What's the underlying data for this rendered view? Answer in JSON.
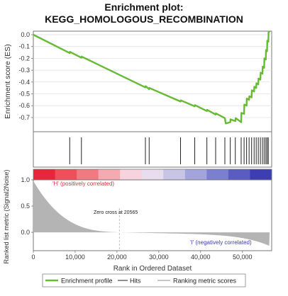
{
  "chart_data": {
    "type": "line",
    "title": "Enrichment plot:",
    "subtitle": "KEGG_HOMOLOGOUS_RECOMBINATION",
    "xlabel": "Rank in Ordered Dataset",
    "xlim": [
      0,
      57000
    ],
    "x_ticks": [
      0,
      10000,
      20000,
      30000,
      40000,
      50000
    ],
    "x_tick_labels": [
      "0",
      "10,000",
      "20,000",
      "30,000",
      "40,000",
      "50,000"
    ],
    "es_panel": {
      "ylabel": "Enrichment score (ES)",
      "ylim": [
        -0.82,
        0.03
      ],
      "y_ticks": [
        0.0,
        -0.1,
        -0.2,
        -0.3,
        -0.4,
        -0.5,
        -0.6,
        -0.7
      ],
      "y_tick_labels": [
        "0.0",
        "-0.1",
        "-0.2",
        "-0.3",
        "-0.4",
        "-0.5",
        "-0.6",
        "-0.7"
      ],
      "color": "#66bb33",
      "grid": true,
      "series": [
        {
          "name": "Enrichment profile",
          "x": [
            0,
            8700,
            8750,
            11500,
            11550,
            26800,
            26850,
            27700,
            27750,
            35200,
            35250,
            38600,
            38650,
            41500,
            41550,
            43600,
            43650,
            45800,
            46000,
            47100,
            47150,
            48300,
            48400,
            49700,
            49750,
            50400,
            50450,
            51000,
            51050,
            51600,
            51650,
            52200,
            52250,
            52800,
            52850,
            53300,
            53350,
            53800,
            53850,
            54300,
            54350,
            54800,
            54850,
            55200,
            55250,
            55600,
            55650,
            55900,
            55950,
            56200,
            56250,
            56500
          ],
          "y": [
            0.0,
            -0.155,
            -0.145,
            -0.195,
            -0.185,
            -0.445,
            -0.435,
            -0.46,
            -0.45,
            -0.565,
            -0.555,
            -0.605,
            -0.595,
            -0.645,
            -0.635,
            -0.675,
            -0.665,
            -0.705,
            -0.75,
            -0.74,
            -0.715,
            -0.73,
            -0.705,
            -0.74,
            -0.66,
            -0.67,
            -0.59,
            -0.6,
            -0.54,
            -0.55,
            -0.52,
            -0.53,
            -0.47,
            -0.48,
            -0.44,
            -0.45,
            -0.41,
            -0.42,
            -0.37,
            -0.38,
            -0.32,
            -0.33,
            -0.27,
            -0.28,
            -0.2,
            -0.21,
            -0.13,
            -0.14,
            -0.05,
            -0.06,
            0.02,
            0.03
          ]
        }
      ]
    },
    "hits": {
      "name": "Hits",
      "x": [
        8700,
        11500,
        26800,
        27700,
        35200,
        38600,
        41500,
        43600,
        45800,
        47100,
        48300,
        49700,
        50400,
        51000,
        51600,
        52200,
        52800,
        53300,
        53800,
        54300,
        54800,
        55200,
        55600,
        55900,
        56200
      ]
    },
    "heatmap_colors": [
      "#e8253a",
      "#ee4f58",
      "#f17a80",
      "#f5aab1",
      "#f7d3df",
      "#e9dcef",
      "#c7c4e6",
      "#a4a4dc",
      "#7b7fd0",
      "#5b5cc2",
      "#3e3eb3"
    ],
    "ranked_panel": {
      "ylabel": "Ranked list metric (Signal2Noise)",
      "ylim": [
        -0.35,
        1.0
      ],
      "y_ticks": [
        1.0,
        0.5,
        0.0
      ],
      "y_tick_labels": [
        "1.0",
        "0.5",
        "0.0"
      ],
      "series_name": "Ranking metric scores",
      "color": "#b4b4b4",
      "zero_cross": 20565,
      "zero_cross_label": "Zero cross at 20565",
      "pos_label": "'H' (positively correlated)",
      "neg_label": "'I' (negatively correlated)"
    },
    "legend": {
      "placement": "bottom",
      "entries": [
        "Enrichment profile",
        "Hits",
        "Ranking metric scores"
      ]
    }
  }
}
